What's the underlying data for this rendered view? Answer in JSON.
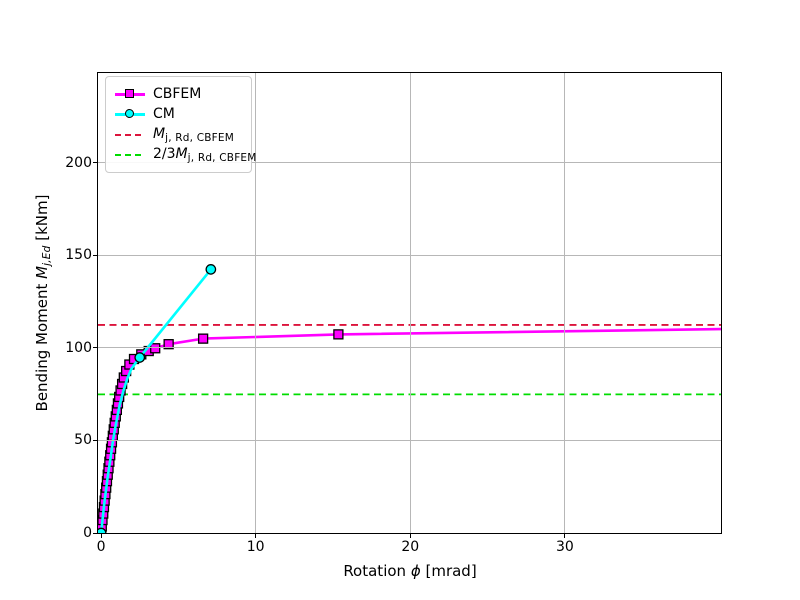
{
  "chart_data": {
    "type": "line",
    "title": "",
    "xlabel": {
      "pre": "Rotation ",
      "symbol": "ϕ",
      "post": " [mrad]"
    },
    "ylabel": {
      "pre": "Bending Moment ",
      "symbol": "M",
      "sub": "j,Ed",
      "post": " [kNm]"
    },
    "xlim": [
      -0.2,
      40.1
    ],
    "ylim": [
      0,
      248.5
    ],
    "xticks": [
      0,
      10,
      20,
      30
    ],
    "yticks": [
      0,
      50,
      100,
      150,
      200
    ],
    "grid": true,
    "grid_xticks": [
      10,
      20,
      30
    ],
    "grid_yticks": [
      50,
      100,
      150,
      200
    ],
    "grid_color": "#b7b7b7",
    "legend_position": "upper-left",
    "series": [
      {
        "name": "CBFEM",
        "color": "#ff00ff",
        "marker": "square",
        "line_style": "solid",
        "points": [
          [
            0,
            0
          ],
          [
            0.045,
            3.5
          ],
          [
            0.09,
            7
          ],
          [
            0.14,
            10.5
          ],
          [
            0.185,
            14
          ],
          [
            0.23,
            17.5
          ],
          [
            0.28,
            21
          ],
          [
            0.33,
            24.5
          ],
          [
            0.38,
            28
          ],
          [
            0.43,
            31.5
          ],
          [
            0.48,
            35
          ],
          [
            0.535,
            38.5
          ],
          [
            0.59,
            42
          ],
          [
            0.645,
            45.5
          ],
          [
            0.7,
            49
          ],
          [
            0.76,
            52.5
          ],
          [
            0.82,
            56
          ],
          [
            0.88,
            59.5
          ],
          [
            0.95,
            63
          ],
          [
            1.02,
            66.5
          ],
          [
            1.09,
            70
          ],
          [
            1.17,
            73.5
          ],
          [
            1.26,
            77
          ],
          [
            1.36,
            80.5
          ],
          [
            1.47,
            84
          ],
          [
            1.62,
            87.5
          ],
          [
            1.83,
            91
          ],
          [
            2.13,
            94
          ],
          [
            2.6,
            96.5
          ],
          [
            3.08,
            98.3
          ],
          [
            3.5,
            99.8
          ],
          [
            4.37,
            102
          ],
          [
            6.6,
            105
          ],
          [
            15.35,
            107.3
          ],
          [
            40.5,
            110.2
          ]
        ]
      },
      {
        "name": "CM",
        "color": "#00ffff",
        "marker": "circle",
        "line_style": "solid",
        "points": [
          [
            0,
            0
          ],
          [
            0.2,
            15.5
          ],
          [
            0.42,
            30
          ],
          [
            0.62,
            41
          ],
          [
            0.77,
            50
          ],
          [
            0.95,
            58.5
          ],
          [
            1.2,
            69
          ],
          [
            1.45,
            77
          ],
          [
            1.7,
            83.5
          ],
          [
            1.95,
            88.5
          ],
          [
            2.2,
            91.5
          ],
          [
            2.5,
            94.8
          ],
          [
            7.1,
            142.4
          ]
        ],
        "marker_points": [
          [
            0,
            0
          ],
          [
            2.5,
            94.8
          ],
          [
            7.1,
            142.4
          ]
        ]
      }
    ],
    "hlines": [
      {
        "id": "mj-rd-cbfem",
        "value": 112.4,
        "color": "#dc143c",
        "style": "dashed"
      },
      {
        "id": "two-thirds-mj-rd-cbfem",
        "value": 74.9,
        "color": "#00dc00",
        "style": "dashed"
      }
    ],
    "legend": {
      "items": [
        {
          "id": "cbfem",
          "sample": "line-square",
          "color": "#ff00ff",
          "pre": "CBFEM",
          "main": "",
          "sub": ""
        },
        {
          "id": "cm",
          "sample": "line-circle",
          "color": "#00ffff",
          "pre": "CM",
          "main": "",
          "sub": ""
        },
        {
          "id": "mj-rd-cbfem",
          "sample": "dashed",
          "color": "#dc143c",
          "pre": "",
          "main": "M",
          "sub": "j, Rd, CBFEM"
        },
        {
          "id": "two-thirds-mj-rd-cbfem",
          "sample": "dashed",
          "color": "#00dc00",
          "pre": "2/3",
          "main": "M",
          "sub": "j, Rd, CBFEM"
        }
      ]
    }
  }
}
